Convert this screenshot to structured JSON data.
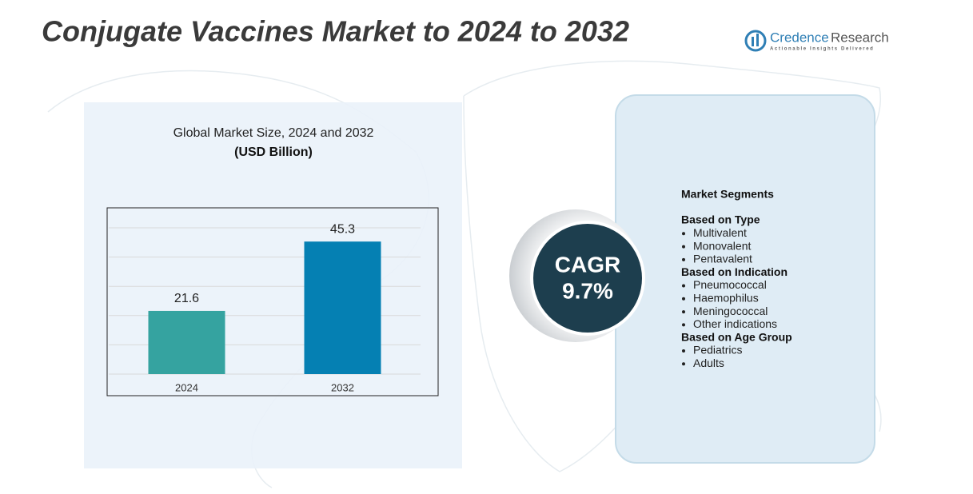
{
  "title": "Conjugate Vaccines Market to 2024 to 2032",
  "logo": {
    "name_first": "Credence",
    "name_second": "Research",
    "tagline": "Actionable Insights Delivered"
  },
  "chart_data": {
    "type": "bar",
    "title": "Global Market Size, 2024 and 2032",
    "subtitle": "(USD Billion)",
    "categories": [
      "2024",
      "2032"
    ],
    "values": [
      21.6,
      45.3
    ],
    "colors": [
      "#35a3a0",
      "#0580b3"
    ],
    "ylim": [
      0,
      50
    ],
    "yticks": [
      0,
      10,
      20,
      30,
      40,
      50
    ],
    "grid": true
  },
  "cagr": {
    "label": "CAGR",
    "value": "9.7%"
  },
  "segments": {
    "title": "Market Segments",
    "groups": [
      {
        "name": "Based on Type",
        "items": [
          "Multivalent",
          "Monovalent",
          "Pentavalent"
        ]
      },
      {
        "name": "Based on Indication",
        "items": [
          "Pneumococcal",
          "Haemophilus",
          "Meningococcal",
          "Other indications"
        ]
      },
      {
        "name": "Based on Age Group",
        "items": [
          "Pediatrics",
          "Adults"
        ]
      }
    ]
  }
}
